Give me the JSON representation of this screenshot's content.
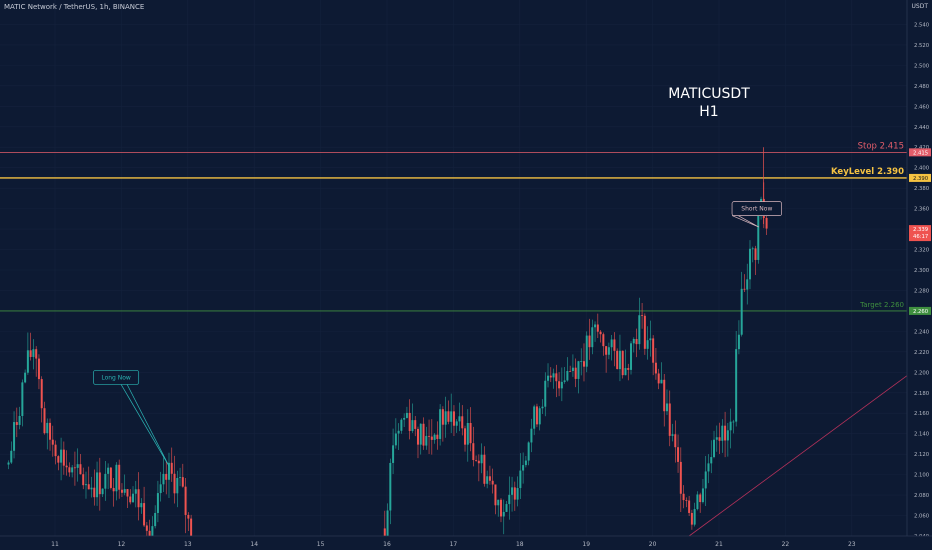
{
  "chart_data": {
    "type": "candlestick",
    "title": "MATIC Network / TetherUS, 1h, BINANCE",
    "subtitle": [
      "MATICUSDT",
      "H1"
    ],
    "currency": "USDT",
    "y_axis": {
      "range": [
        2.04,
        2.56
      ],
      "ticks": [
        "2.540",
        "2.520",
        "2.500",
        "2.480",
        "2.460",
        "2.440",
        "2.420",
        "2.400",
        "2.380",
        "2.360",
        "2.340",
        "2.320",
        "2.300",
        "2.280",
        "2.260",
        "2.240",
        "2.220",
        "2.200",
        "2.180",
        "2.160",
        "2.140",
        "2.120",
        "2.100",
        "2.080",
        "2.060",
        "2.040"
      ],
      "last_price": "2.339",
      "countdown": "46:17"
    },
    "x_axis": {
      "labels": [
        {
          "day": 11,
          "label": "11"
        },
        {
          "day": 12,
          "label": "12"
        },
        {
          "day": 13,
          "label": "13"
        },
        {
          "day": 14,
          "label": "14"
        },
        {
          "day": 15,
          "label": "15"
        },
        {
          "day": 16,
          "label": "16"
        },
        {
          "day": 17,
          "label": "17"
        },
        {
          "day": 18,
          "label": "18"
        },
        {
          "day": 19,
          "label": "19"
        },
        {
          "day": 20,
          "label": "20"
        },
        {
          "day": 21,
          "label": "21"
        },
        {
          "day": 22,
          "label": "22"
        },
        {
          "day": 23,
          "label": "23"
        }
      ]
    },
    "levels": [
      {
        "name": "stop",
        "label": "Stop 2.415",
        "price": 2.415,
        "tag": "2.415",
        "color": "#e35d6a"
      },
      {
        "name": "key",
        "label": "KeyLevel 2.390",
        "price": 2.39,
        "tag": "2.390",
        "color": "#f5c242"
      },
      {
        "name": "target",
        "label": "Target 2.260",
        "price": 2.26,
        "tag": "2.260",
        "color": "#3f8f3f"
      }
    ],
    "trendline": {
      "from": {
        "day": 20.55,
        "price": 2.04
      },
      "to": {
        "day": 23.9,
        "price": 2.2
      },
      "color": "#b3315a"
    },
    "annotations": [
      {
        "name": "long-now",
        "text": "Long Now",
        "color": "#2bb3b3",
        "box": {
          "day": 11.92,
          "price": 2.195
        },
        "pointer": {
          "day": 12.72,
          "price": 2.108
        }
      },
      {
        "name": "short-now",
        "text": "Short Now",
        "color": "#d9b8bf",
        "box": {
          "day": 21.57,
          "price": 2.36
        },
        "pointer": {
          "day": 21.6,
          "price": 2.342
        }
      }
    ],
    "series_anchors": [
      {
        "day": 10.3,
        "price": 2.11
      },
      {
        "day": 10.55,
        "price": 2.2
      },
      {
        "day": 10.7,
        "price": 2.23
      },
      {
        "day": 10.85,
        "price": 2.14
      },
      {
        "day": 11.0,
        "price": 2.13
      },
      {
        "day": 11.25,
        "price": 2.1
      },
      {
        "day": 11.6,
        "price": 2.09
      },
      {
        "day": 11.95,
        "price": 2.1
      },
      {
        "day": 12.2,
        "price": 2.08
      },
      {
        "day": 12.45,
        "price": 2.05
      },
      {
        "day": 12.7,
        "price": 2.1
      },
      {
        "day": 12.88,
        "price": 2.09
      },
      {
        "day": 13.05,
        "price": 2.04
      },
      {
        "day": 15.95,
        "price": 2.04
      },
      {
        "day": 16.1,
        "price": 2.14
      },
      {
        "day": 16.3,
        "price": 2.16
      },
      {
        "day": 16.6,
        "price": 2.13
      },
      {
        "day": 16.9,
        "price": 2.16
      },
      {
        "day": 17.2,
        "price": 2.14
      },
      {
        "day": 17.5,
        "price": 2.1
      },
      {
        "day": 17.8,
        "price": 2.06
      },
      {
        "day": 18.05,
        "price": 2.12
      },
      {
        "day": 18.35,
        "price": 2.18
      },
      {
        "day": 18.65,
        "price": 2.2
      },
      {
        "day": 18.9,
        "price": 2.21
      },
      {
        "day": 19.15,
        "price": 2.24
      },
      {
        "day": 19.35,
        "price": 2.22
      },
      {
        "day": 19.6,
        "price": 2.21
      },
      {
        "day": 19.8,
        "price": 2.25
      },
      {
        "day": 20.0,
        "price": 2.22
      },
      {
        "day": 20.2,
        "price": 2.16
      },
      {
        "day": 20.4,
        "price": 2.1
      },
      {
        "day": 20.6,
        "price": 2.06
      },
      {
        "day": 20.8,
        "price": 2.1
      },
      {
        "day": 20.95,
        "price": 2.15
      },
      {
        "day": 21.1,
        "price": 2.13
      },
      {
        "day": 21.2,
        "price": 2.15
      },
      {
        "day": 21.32,
        "price": 2.27
      },
      {
        "day": 21.45,
        "price": 2.31
      },
      {
        "day": 21.55,
        "price": 2.32
      },
      {
        "day": 21.62,
        "price": 2.37
      },
      {
        "day": 21.72,
        "price": 2.339
      }
    ]
  }
}
